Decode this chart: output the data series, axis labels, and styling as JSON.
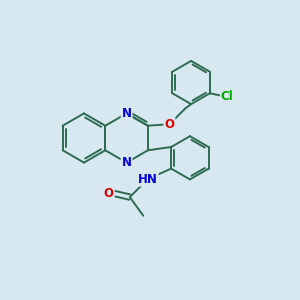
{
  "bg_color": "#d8e8f0",
  "bond_color": "#2d6b50",
  "bond_width": 1.4,
  "atom_colors": {
    "N": "#0000dd",
    "O": "#dd0000",
    "Cl": "#00aa00"
  },
  "font_size": 8.5,
  "fig_size": [
    3.0,
    3.0
  ],
  "dpi": 100
}
